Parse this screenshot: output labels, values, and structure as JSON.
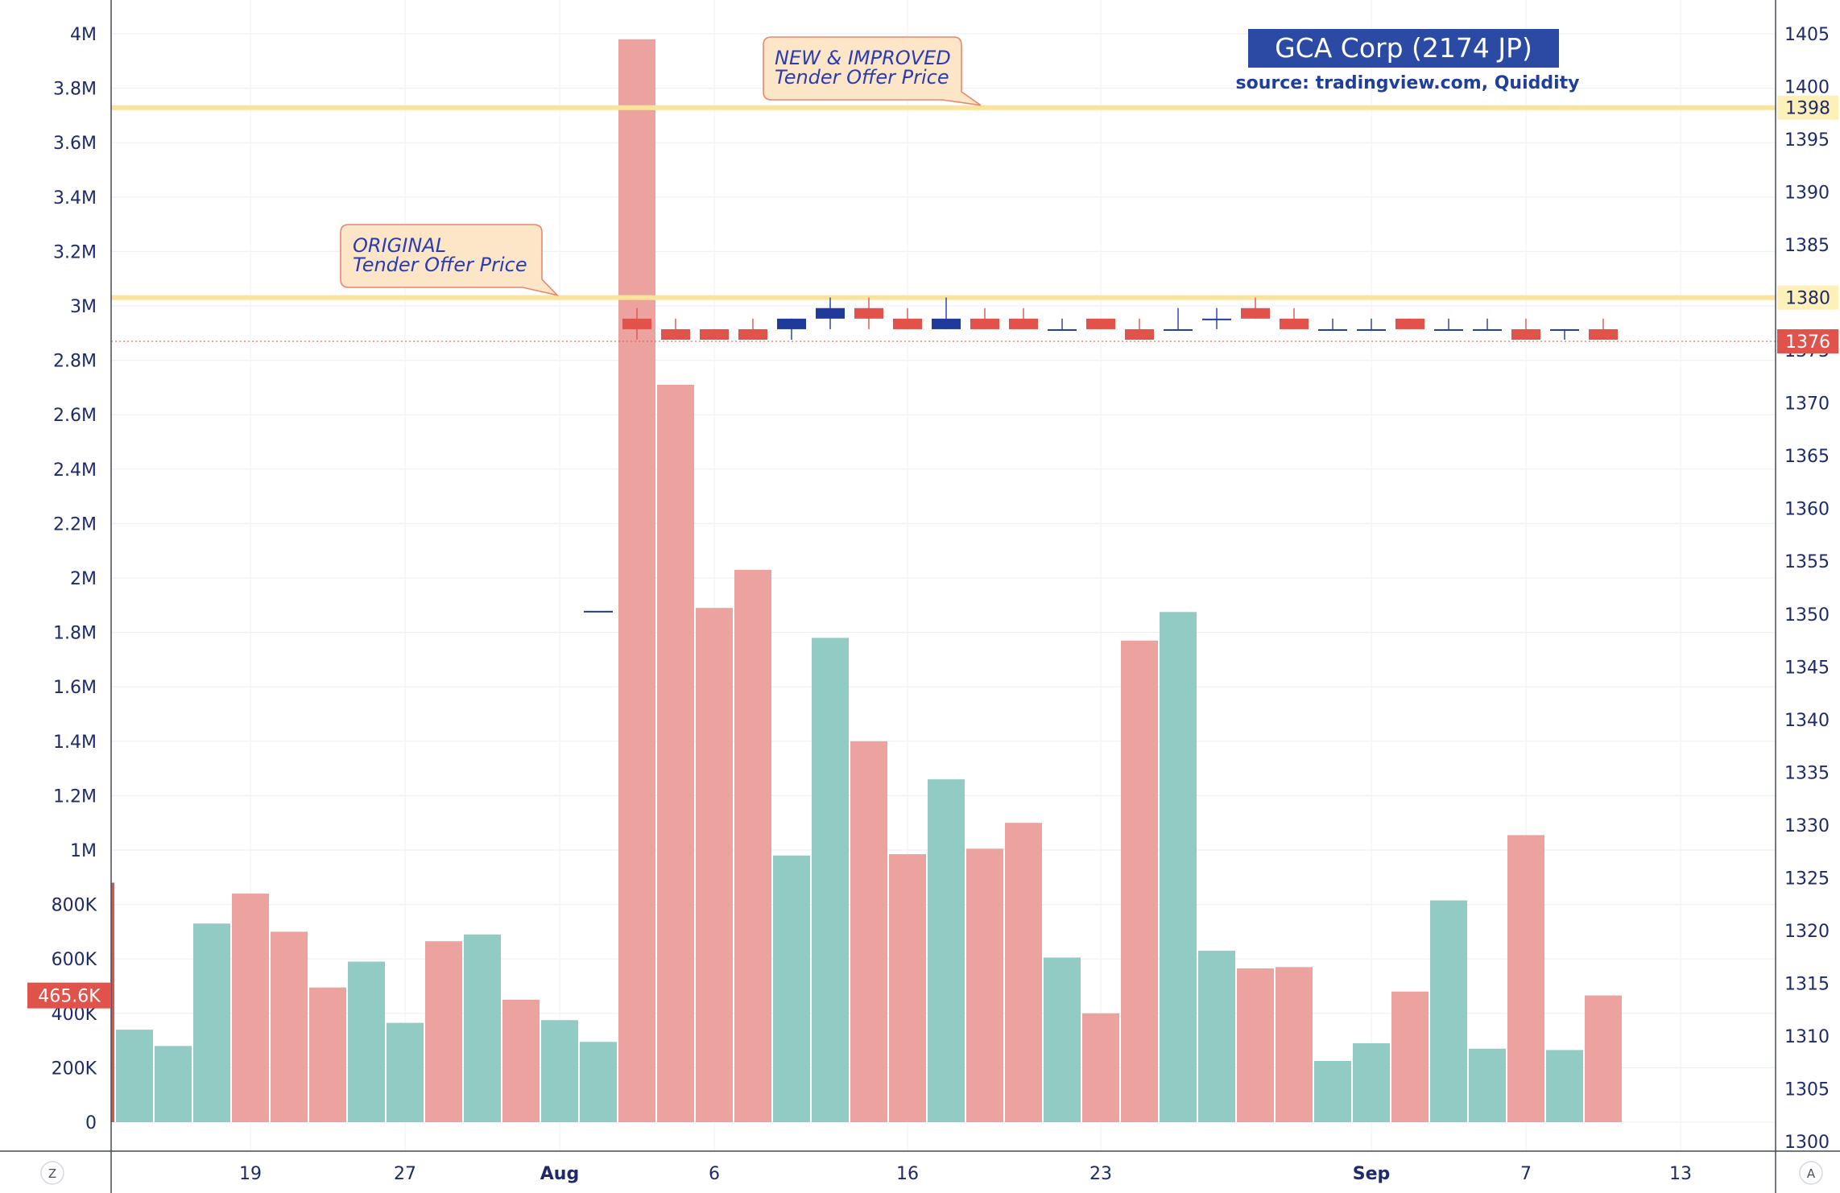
{
  "chart_data": {
    "type": "candlestick-volume",
    "title": "GCA Corp (2174 JP)",
    "subtitle": "source: tradingview.com, Quiddity",
    "left_axis": {
      "ticks": [
        "0",
        "200K",
        "400K",
        "600K",
        "800K",
        "1M",
        "1.2M",
        "1.4M",
        "1.6M",
        "1.8M",
        "2M",
        "2.2M",
        "2.4M",
        "2.6M",
        "2.8M",
        "3M",
        "3.2M",
        "3.4M",
        "3.6M",
        "3.8M",
        "4M"
      ],
      "range": [
        0,
        4000000
      ]
    },
    "right_axis": {
      "ticks": [
        "1300",
        "1305",
        "1310",
        "1315",
        "1320",
        "1325",
        "1330",
        "1335",
        "1340",
        "1345",
        "1350",
        "1355",
        "1360",
        "1365",
        "1370",
        "1375",
        "1380",
        "1385",
        "1390",
        "1395",
        "1400",
        "1405"
      ],
      "range": [
        1300,
        1405
      ]
    },
    "x_ticks": [
      {
        "label": "19",
        "pos": 3.5,
        "bold": false
      },
      {
        "label": "27",
        "pos": 7.5,
        "bold": false
      },
      {
        "label": "Aug",
        "pos": 11.5,
        "bold": true
      },
      {
        "label": "6",
        "pos": 15.5,
        "bold": false
      },
      {
        "label": "16",
        "pos": 20.5,
        "bold": false
      },
      {
        "label": "23",
        "pos": 25.5,
        "bold": false
      },
      {
        "label": "Sep",
        "pos": 32.5,
        "bold": true
      },
      {
        "label": "7",
        "pos": 36.5,
        "bold": false
      },
      {
        "label": "13",
        "pos": 40.5,
        "bold": false
      }
    ],
    "volume": [
      {
        "v": 340000,
        "up": true
      },
      {
        "v": 280000,
        "up": true
      },
      {
        "v": 730000,
        "up": true
      },
      {
        "v": 840000,
        "up": false
      },
      {
        "v": 700000,
        "up": false
      },
      {
        "v": 495000,
        "up": false
      },
      {
        "v": 590000,
        "up": true
      },
      {
        "v": 365000,
        "up": true
      },
      {
        "v": 665000,
        "up": false
      },
      {
        "v": 690000,
        "up": true
      },
      {
        "v": 450000,
        "up": false
      },
      {
        "v": 375000,
        "up": true
      },
      {
        "v": 295000,
        "up": true
      },
      {
        "v": 3980000,
        "up": false
      },
      {
        "v": 2710000,
        "up": false
      },
      {
        "v": 1890000,
        "up": false
      },
      {
        "v": 2030000,
        "up": false
      },
      {
        "v": 980000,
        "up": true
      },
      {
        "v": 1780000,
        "up": true
      },
      {
        "v": 1400000,
        "up": false
      },
      {
        "v": 985000,
        "up": false
      },
      {
        "v": 1260000,
        "up": true
      },
      {
        "v": 1005000,
        "up": false
      },
      {
        "v": 1100000,
        "up": false
      },
      {
        "v": 605000,
        "up": true
      },
      {
        "v": 400000,
        "up": false
      },
      {
        "v": 1770000,
        "up": false
      },
      {
        "v": 1875000,
        "up": true
      },
      {
        "v": 630000,
        "up": true
      },
      {
        "v": 565000,
        "up": false
      },
      {
        "v": 570000,
        "up": false
      },
      {
        "v": 225000,
        "up": true
      },
      {
        "v": 290000,
        "up": true
      },
      {
        "v": 480000,
        "up": false
      },
      {
        "v": 815000,
        "up": true
      },
      {
        "v": 270000,
        "up": true
      },
      {
        "v": 1055000,
        "up": false
      },
      {
        "v": 265000,
        "up": true
      },
      {
        "v": 465600,
        "up": false
      }
    ],
    "candles": [
      {
        "i": 12,
        "o": 1350.3,
        "h": 1350.3,
        "l": 1350.3,
        "c": 1350.3,
        "up": true
      },
      {
        "i": 13,
        "o": 1378,
        "h": 1379,
        "l": 1376,
        "c": 1377,
        "up": false
      },
      {
        "i": 14,
        "o": 1377,
        "h": 1378,
        "l": 1376,
        "c": 1376,
        "up": false
      },
      {
        "i": 15,
        "o": 1377,
        "h": 1377,
        "l": 1376,
        "c": 1376,
        "up": false
      },
      {
        "i": 16,
        "o": 1377,
        "h": 1378,
        "l": 1376,
        "c": 1376,
        "up": false
      },
      {
        "i": 17,
        "o": 1377,
        "h": 1378,
        "l": 1376,
        "c": 1378,
        "up": true
      },
      {
        "i": 18,
        "o": 1378,
        "h": 1380,
        "l": 1377,
        "c": 1379,
        "up": true
      },
      {
        "i": 19,
        "o": 1379,
        "h": 1380,
        "l": 1377,
        "c": 1378,
        "up": false
      },
      {
        "i": 20,
        "o": 1378,
        "h": 1379,
        "l": 1377,
        "c": 1377,
        "up": false
      },
      {
        "i": 21,
        "o": 1377,
        "h": 1380,
        "l": 1377,
        "c": 1378,
        "up": true
      },
      {
        "i": 22,
        "o": 1378,
        "h": 1379,
        "l": 1377,
        "c": 1377,
        "up": false
      },
      {
        "i": 23,
        "o": 1378,
        "h": 1379,
        "l": 1377,
        "c": 1377,
        "up": false
      },
      {
        "i": 24,
        "o": 1377,
        "h": 1378,
        "l": 1377,
        "c": 1377,
        "up": true
      },
      {
        "i": 25,
        "o": 1378,
        "h": 1378,
        "l": 1377,
        "c": 1377,
        "up": false
      },
      {
        "i": 26,
        "o": 1377,
        "h": 1378,
        "l": 1376,
        "c": 1376,
        "up": false
      },
      {
        "i": 27,
        "o": 1377,
        "h": 1379,
        "l": 1377,
        "c": 1377,
        "up": true
      },
      {
        "i": 28,
        "o": 1378,
        "h": 1379,
        "l": 1377,
        "c": 1378,
        "up": true
      },
      {
        "i": 29,
        "o": 1379,
        "h": 1380,
        "l": 1378,
        "c": 1378,
        "up": false
      },
      {
        "i": 30,
        "o": 1378,
        "h": 1379,
        "l": 1377,
        "c": 1377,
        "up": false
      },
      {
        "i": 31,
        "o": 1377,
        "h": 1378,
        "l": 1377,
        "c": 1377,
        "up": true
      },
      {
        "i": 32,
        "o": 1377,
        "h": 1378,
        "l": 1377,
        "c": 1377,
        "up": true
      },
      {
        "i": 33,
        "o": 1378,
        "h": 1378,
        "l": 1377,
        "c": 1377,
        "up": false
      },
      {
        "i": 34,
        "o": 1377,
        "h": 1378,
        "l": 1377,
        "c": 1377,
        "up": true
      },
      {
        "i": 35,
        "o": 1377,
        "h": 1378,
        "l": 1377,
        "c": 1377,
        "up": true
      },
      {
        "i": 36,
        "o": 1377,
        "h": 1378,
        "l": 1376,
        "c": 1376,
        "up": false
      },
      {
        "i": 37,
        "o": 1377,
        "h": 1377,
        "l": 1376,
        "c": 1377,
        "up": true
      },
      {
        "i": 38,
        "o": 1377,
        "h": 1378,
        "l": 1376,
        "c": 1376,
        "up": false
      }
    ],
    "reference_lines": [
      {
        "value": 1398,
        "label": "1398",
        "callout_l1": "NEW & IMPROVED",
        "callout_l2": "Tender Offer Price"
      },
      {
        "value": 1380,
        "label": "1380",
        "callout_l1": "ORIGINAL",
        "callout_l2": "Tender Offer Price"
      }
    ],
    "last_price": {
      "value": 1376,
      "label": "1376"
    },
    "last_volume": {
      "value": 465600,
      "label": "465.6K"
    },
    "corner_left": "Z",
    "corner_right": "A",
    "colors": {
      "up_volume": "#92cbc4",
      "down_volume": "#eca39f",
      "up_candle": "#1f3a9a",
      "down_candle": "#e0524a",
      "ref_line": "#fae39a",
      "title_bg": "#2a4aa3",
      "axis_text": "#1f2a6b",
      "last_price_bg": "#e0524a"
    }
  }
}
